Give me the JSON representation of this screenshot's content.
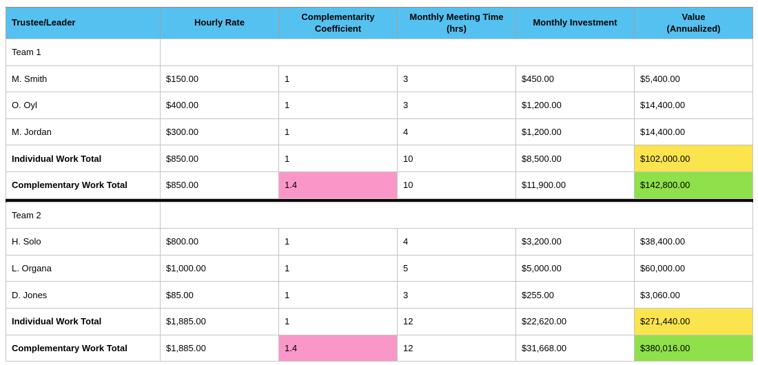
{
  "colors": {
    "header_bg": "#55c1f1",
    "highlight_yellow": "#fbe44e",
    "highlight_green": "#8fe04a",
    "highlight_pink": "#fa97c8",
    "section_separator": "#0a0a0a"
  },
  "header": {
    "columns": [
      {
        "id": "trustee-leader",
        "lines": [
          "Trustee/Leader"
        ],
        "align": "left"
      },
      {
        "id": "hourly-rate",
        "lines": [
          "Hourly Rate"
        ],
        "align": "center"
      },
      {
        "id": "complementarity-coefficient",
        "lines": [
          "Complementarity",
          "Coefficient"
        ],
        "align": "center"
      },
      {
        "id": "monthly-meeting-time",
        "lines": [
          "Monthly Meeting Time",
          "(hrs)"
        ],
        "align": "center"
      },
      {
        "id": "monthly-investment",
        "lines": [
          "Monthly Investment"
        ],
        "align": "center"
      },
      {
        "id": "value-annualized",
        "lines": [
          "Value",
          "(Annualized)"
        ],
        "align": "center"
      }
    ]
  },
  "rows": [
    {
      "type": "section",
      "cells": [
        "Team 1",
        "",
        "",
        "",
        "",
        ""
      ]
    },
    {
      "type": "member",
      "cells": [
        "M. Smith",
        "$150.00",
        "1",
        "3",
        "$450.00",
        "$5,400.00"
      ]
    },
    {
      "type": "member",
      "cells": [
        "O. Oyl",
        "$400.00",
        "1",
        "3",
        "$1,200.00",
        "$14,400.00"
      ]
    },
    {
      "type": "member",
      "cells": [
        "M. Jordan",
        "$300.00",
        "1",
        "4",
        "$1,200.00",
        "$14,400.00"
      ]
    },
    {
      "type": "total_individual",
      "cells": [
        "Individual Work Total",
        "$850.00",
        "1",
        "10",
        "$8,500.00",
        "$102,000.00"
      ]
    },
    {
      "type": "total_complementary",
      "cells": [
        "Complementary Work Total",
        "$850.00",
        "1.4",
        "10",
        "$11,900.00",
        "$142,800.00"
      ]
    },
    {
      "type": "separator"
    },
    {
      "type": "section",
      "cells": [
        "Team 2",
        "",
        "",
        "",
        "",
        ""
      ]
    },
    {
      "type": "member",
      "cells": [
        "H. Solo",
        "$800.00",
        "1",
        "4",
        "$3,200.00",
        "$38,400.00"
      ]
    },
    {
      "type": "member",
      "cells": [
        "L. Organa",
        "$1,000.00",
        "1",
        "5",
        "$5,000.00",
        "$60,000.00"
      ]
    },
    {
      "type": "member",
      "cells": [
        "D. Jones",
        "$85.00",
        "1",
        "3",
        "$255.00",
        "$3,060.00"
      ]
    },
    {
      "type": "total_individual",
      "cells": [
        "Individual Work Total",
        "$1,885.00",
        "1",
        "12",
        "$22,620.00",
        "$271,440.00"
      ]
    },
    {
      "type": "total_complementary",
      "cells": [
        "Complementary Work Total",
        "$1,885.00",
        "1.4",
        "12",
        "$31,668.00",
        "$380,016.00"
      ]
    }
  ]
}
